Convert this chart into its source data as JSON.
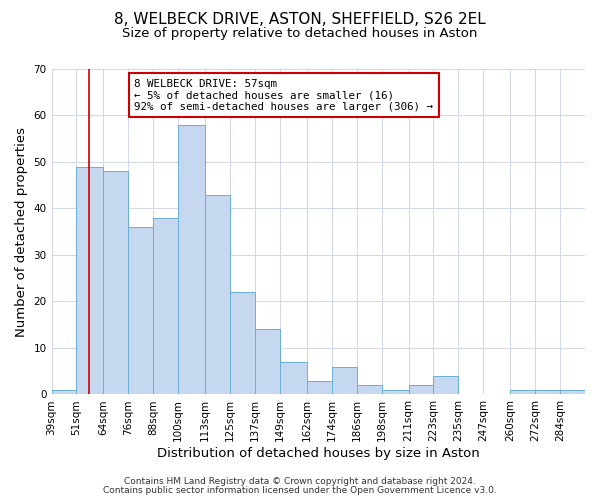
{
  "title": "8, WELBECK DRIVE, ASTON, SHEFFIELD, S26 2EL",
  "subtitle": "Size of property relative to detached houses in Aston",
  "xlabel": "Distribution of detached houses by size in Aston",
  "ylabel": "Number of detached properties",
  "bin_labels": [
    "39sqm",
    "51sqm",
    "64sqm",
    "76sqm",
    "88sqm",
    "100sqm",
    "113sqm",
    "125sqm",
    "137sqm",
    "149sqm",
    "162sqm",
    "174sqm",
    "186sqm",
    "198sqm",
    "211sqm",
    "223sqm",
    "235sqm",
    "247sqm",
    "260sqm",
    "272sqm",
    "284sqm"
  ],
  "bin_edges": [
    39,
    51,
    64,
    76,
    88,
    100,
    113,
    125,
    137,
    149,
    162,
    174,
    186,
    198,
    211,
    223,
    235,
    247,
    260,
    272,
    284,
    296
  ],
  "bar_heights": [
    1,
    49,
    48,
    36,
    38,
    58,
    43,
    22,
    14,
    7,
    3,
    6,
    2,
    1,
    2,
    4,
    0,
    0,
    1,
    1,
    1
  ],
  "bar_color": "#c5d8f0",
  "bar_edge_color": "#6aaed6",
  "ylim": [
    0,
    70
  ],
  "yticks": [
    0,
    10,
    20,
    30,
    40,
    50,
    60,
    70
  ],
  "vline_x": 57,
  "vline_color": "#cc0000",
  "annotation_title": "8 WELBECK DRIVE: 57sqm",
  "annotation_line1": "← 5% of detached houses are smaller (16)",
  "annotation_line2": "92% of semi-detached houses are larger (306) →",
  "annotation_box_color": "#ffffff",
  "annotation_box_edge": "#cc0000",
  "footer1": "Contains HM Land Registry data © Crown copyright and database right 2024.",
  "footer2": "Contains public sector information licensed under the Open Government Licence v3.0.",
  "bg_color": "#ffffff",
  "grid_color": "#d0d8e8",
  "title_fontsize": 11,
  "subtitle_fontsize": 9.5,
  "axis_label_fontsize": 9.5,
  "tick_fontsize": 7.5,
  "annotation_fontsize": 7.8,
  "footer_fontsize": 6.5
}
